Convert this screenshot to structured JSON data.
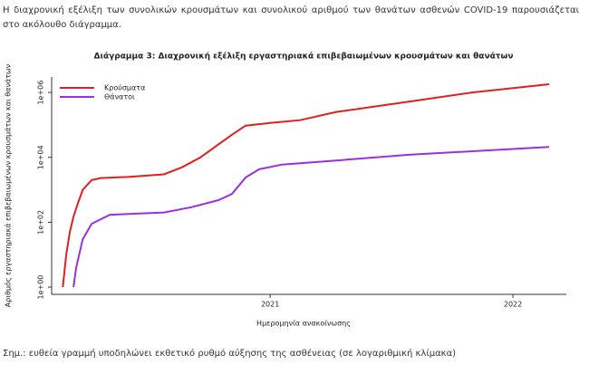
{
  "intro": "Η διαχρονική εξέλιξη των συνολικών κρουσμάτων και συνολικού αριθμού των θανάτων ασθενών COVID-19 παρουσιάζεται στο ακόλουθο διάγραμμα.",
  "chart_data": {
    "type": "line",
    "title": "Διάγραμμα 3: Διαχρονική εξέλιξη εργαστηριακά επιβεβαιωμένων κρουσμάτων και θανάτων",
    "x_label": "Ημερομηνία ανακοίνωσης",
    "y_label": "Αριθμός εργαστηριακά επιβεβαιωμένων κρουσμάτων και θανάτων",
    "log_y": true,
    "legend": "top-left",
    "xlim": [
      2020.1,
      2022.22
    ],
    "xticks": [
      2021,
      2022
    ],
    "ylim": [
      0.6,
      3000000
    ],
    "yticks": [
      {
        "value": 1,
        "label": "1e+00"
      },
      {
        "value": 100,
        "label": "1e+02"
      },
      {
        "value": 10000,
        "label": "1e+04"
      },
      {
        "value": 1000000,
        "label": "1e+06"
      }
    ],
    "series": [
      {
        "name": "Κρούσματα",
        "color": "#e02020",
        "x": [
          2020.146,
          2020.16,
          2020.175,
          2020.19,
          2020.209,
          2020.228,
          2020.265,
          2020.302,
          2020.414,
          2020.563,
          2020.638,
          2020.713,
          2020.787,
          2020.843,
          2020.899,
          2021.0,
          2021.123,
          2021.272,
          2021.571,
          2021.832,
          2022.149
        ],
        "values": [
          1,
          10,
          50,
          150,
          400,
          1000,
          2000,
          2300,
          2500,
          3000,
          5000,
          10000,
          25000,
          50000,
          95000,
          115000,
          140000,
          250000,
          520000,
          1000000,
          1800000
        ]
      },
      {
        "name": "Θάνατοι",
        "color": "#9b30e0",
        "x": [
          2020.19,
          2020.201,
          2020.228,
          2020.265,
          2020.34,
          2020.563,
          2020.675,
          2020.787,
          2020.843,
          2020.899,
          2020.955,
          2021.049,
          2021.272,
          2021.571,
          2022.149
        ],
        "values": [
          1,
          4,
          30,
          90,
          170,
          200,
          290,
          480,
          750,
          2400,
          4300,
          6000,
          8000,
          12000,
          21000
        ]
      }
    ]
  },
  "note": "Σημ.: ευθεία γραμμή υποδηλώνει εκθετικό ρυθμό αύξησης της ασθένειας (σε λογαριθμική κλίμακα)"
}
